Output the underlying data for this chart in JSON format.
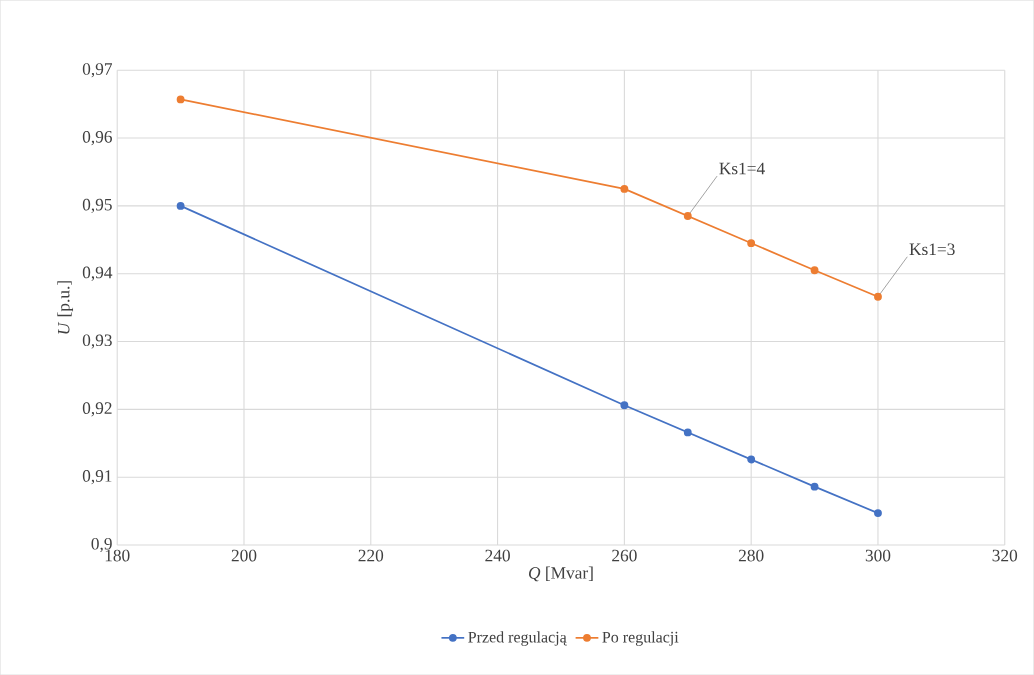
{
  "chart_data": {
    "type": "line",
    "xlabel": "*Q*  [Mvar]",
    "ylabel": "*U* [p.u.]",
    "x": [
      190,
      260,
      270,
      280,
      290,
      300
    ],
    "series": [
      {
        "name": "Przed regulacją",
        "color": "#4472c4",
        "values": [
          0.95,
          0.9206,
          0.9166,
          0.9126,
          0.9086,
          0.9047
        ]
      },
      {
        "name": "Po regulacji",
        "color": "#ed7d31",
        "values": [
          0.9657,
          0.9525,
          0.9485,
          0.9445,
          0.9405,
          0.9366
        ]
      }
    ],
    "xlim": [
      180,
      320
    ],
    "xticks": [
      180,
      200,
      220,
      240,
      260,
      280,
      300,
      320
    ],
    "ylim": [
      0.9,
      0.97
    ],
    "yticks": [
      {
        "value": 0.9,
        "label": "0,9"
      },
      {
        "value": 0.91,
        "label": "0,91"
      },
      {
        "value": 0.92,
        "label": "0,92"
      },
      {
        "value": 0.93,
        "label": "0,93"
      },
      {
        "value": 0.94,
        "label": "0,94"
      },
      {
        "value": 0.95,
        "label": "0,95"
      },
      {
        "value": 0.96,
        "label": "0,96"
      },
      {
        "value": 0.97,
        "label": "0,97"
      }
    ],
    "annotations": [
      {
        "text": "Ks1=4",
        "x": 270,
        "y": 0.9485
      },
      {
        "text": "Ks1=3",
        "x": 300,
        "y": 0.9366
      }
    ],
    "grid": true,
    "legend": "bottom",
    "marker": "circle",
    "line_style": "solid"
  }
}
